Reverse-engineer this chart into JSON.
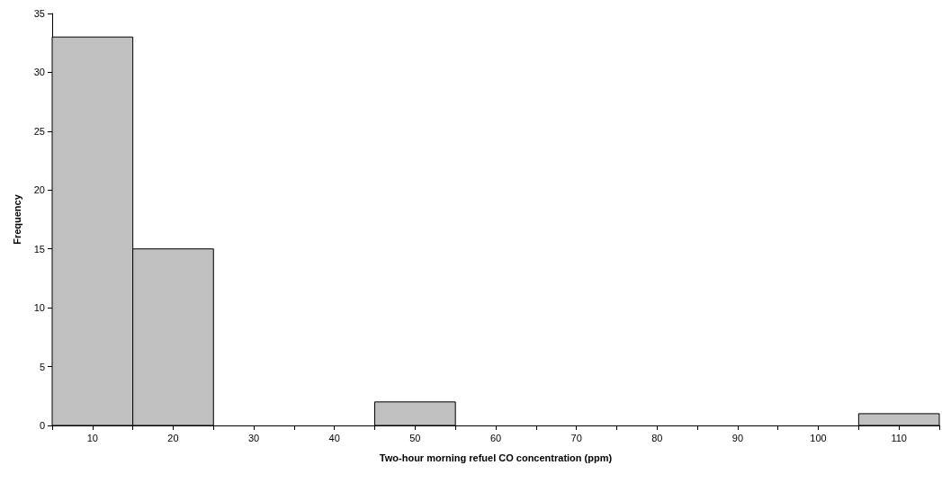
{
  "chart_data": {
    "type": "histogram",
    "xlabel": "Two-hour morning refuel CO concentration (ppm)",
    "ylabel": "Frequency",
    "bins": [
      5,
      15,
      25,
      35,
      45,
      55,
      65,
      75,
      85,
      95,
      105,
      115
    ],
    "values": [
      33,
      15,
      0,
      0,
      2,
      0,
      0,
      0,
      0,
      0,
      1
    ],
    "color": "#c0c0c0",
    "xlim": [
      5,
      115
    ],
    "xticks": [
      {
        "value": 5,
        "label": null
      },
      10,
      {
        "value": 15,
        "label": null
      },
      20,
      {
        "value": 25,
        "label": null
      },
      30,
      {
        "value": 35,
        "label": null
      },
      40,
      {
        "value": 45,
        "label": null
      },
      50,
      {
        "value": 55,
        "label": null
      },
      60,
      {
        "value": 65,
        "label": null
      },
      70,
      {
        "value": 75,
        "label": null
      },
      80,
      {
        "value": 85,
        "label": null
      },
      90,
      {
        "value": 95,
        "label": null
      },
      100,
      {
        "value": 105,
        "label": null
      },
      110,
      {
        "value": 115,
        "label": null
      }
    ],
    "ylim": [
      0,
      35
    ],
    "yticks": [
      0,
      5,
      10,
      15,
      20,
      25,
      30,
      35
    ],
    "grid": false
  }
}
